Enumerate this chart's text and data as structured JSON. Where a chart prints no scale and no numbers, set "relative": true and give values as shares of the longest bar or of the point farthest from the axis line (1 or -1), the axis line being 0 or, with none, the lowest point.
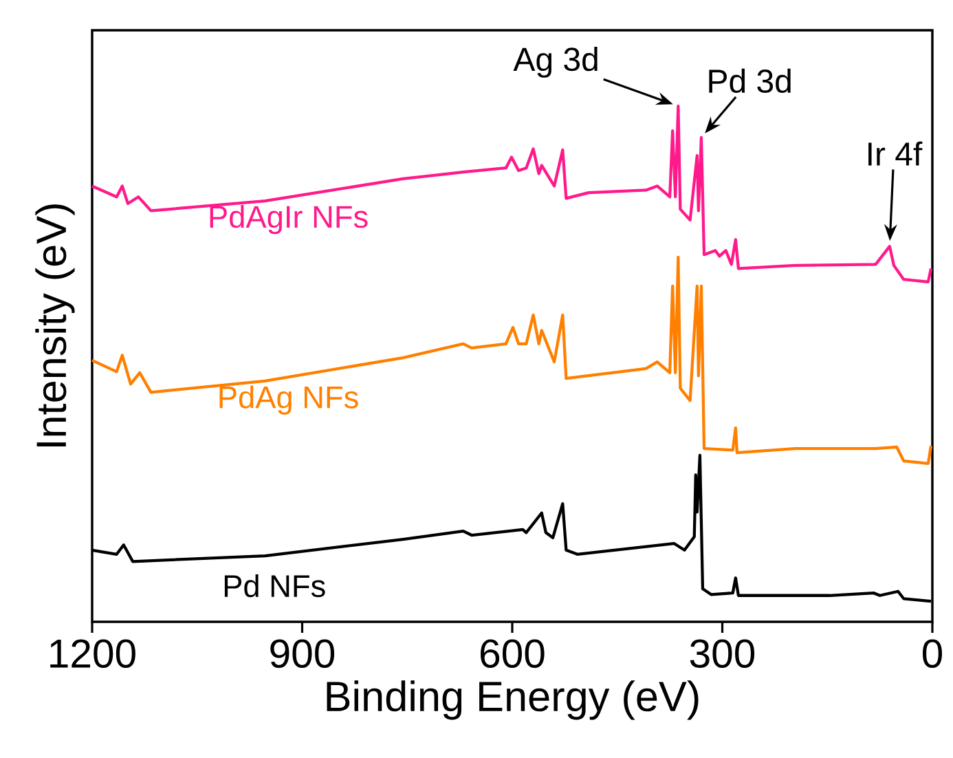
{
  "chart_data": {
    "type": "line",
    "relative": true,
    "xlabel": "Binding Energy (eV)",
    "ylabel": "Intensity (eV)",
    "xlim": [
      1200,
      0
    ],
    "xticks": [
      1200,
      900,
      600,
      300,
      0
    ],
    "tick_labels": "x",
    "line_style": "solid",
    "series": [
      {
        "name": "Pd NFs",
        "color": "#000000",
        "x": [
          1200,
          1165,
          1155,
          1142,
          953,
          756,
          670,
          658,
          585,
          580,
          558,
          552,
          542,
          528,
          523,
          507,
          369,
          354,
          340,
          338,
          336,
          332,
          328,
          316,
          285,
          281,
          277,
          147,
          84,
          75,
          49,
          41,
          2
        ],
        "values": [
          0.139,
          0.131,
          0.149,
          0.117,
          0.128,
          0.16,
          0.176,
          0.168,
          0.179,
          0.173,
          0.211,
          0.173,
          0.163,
          0.229,
          0.139,
          0.131,
          0.152,
          0.139,
          0.165,
          0.285,
          0.213,
          0.323,
          0.064,
          0.053,
          0.056,
          0.085,
          0.051,
          0.051,
          0.056,
          0.051,
          0.059,
          0.045,
          0.04
        ]
      },
      {
        "name": "PdAg NFs",
        "color": "#ff8000",
        "x": [
          1200,
          1165,
          1157,
          1145,
          1132,
          1116,
          953,
          756,
          670,
          658,
          609,
          599,
          591,
          580,
          570,
          562,
          558,
          540,
          528,
          523,
          409,
          393,
          375,
          371,
          367,
          363,
          360,
          346,
          336,
          334,
          330,
          326,
          285,
          281,
          279,
          196,
          81,
          51,
          41,
          6,
          2
        ],
        "values": [
          0.507,
          0.485,
          0.517,
          0.461,
          0.483,
          0.445,
          0.467,
          0.512,
          0.539,
          0.531,
          0.539,
          0.571,
          0.539,
          0.539,
          0.595,
          0.539,
          0.565,
          0.504,
          0.595,
          0.472,
          0.491,
          0.504,
          0.483,
          0.651,
          0.483,
          0.707,
          0.453,
          0.429,
          0.651,
          0.477,
          0.651,
          0.336,
          0.333,
          0.376,
          0.328,
          0.336,
          0.336,
          0.339,
          0.312,
          0.307,
          0.341
        ]
      },
      {
        "name": "PdAgIr NFs",
        "color": "#ff1a8c",
        "x": [
          1200,
          1165,
          1157,
          1149,
          1134,
          1116,
          953,
          756,
          670,
          609,
          601,
          591,
          580,
          570,
          562,
          558,
          540,
          528,
          523,
          491,
          409,
          393,
          375,
          371,
          367,
          363,
          360,
          346,
          336,
          334,
          330,
          326,
          310,
          304,
          295,
          287,
          281,
          277,
          196,
          81,
          61,
          55,
          41,
          6,
          2
        ],
        "values": [
          0.845,
          0.824,
          0.845,
          0.811,
          0.824,
          0.797,
          0.816,
          0.859,
          0.872,
          0.88,
          0.901,
          0.875,
          0.88,
          0.917,
          0.869,
          0.885,
          0.845,
          0.915,
          0.821,
          0.832,
          0.837,
          0.845,
          0.824,
          0.952,
          0.824,
          1.0,
          0.8,
          0.779,
          0.904,
          0.797,
          0.939,
          0.712,
          0.72,
          0.709,
          0.72,
          0.693,
          0.741,
          0.685,
          0.691,
          0.693,
          0.728,
          0.691,
          0.664,
          0.659,
          0.685
        ]
      }
    ],
    "annotations": [
      {
        "text": "Ag 3d",
        "x": 363,
        "y": 1.0
      },
      {
        "text": "Pd 3d",
        "x": 330,
        "y": 0.939
      },
      {
        "text": "Ir 4f",
        "x": 61,
        "y": 0.728
      }
    ]
  }
}
